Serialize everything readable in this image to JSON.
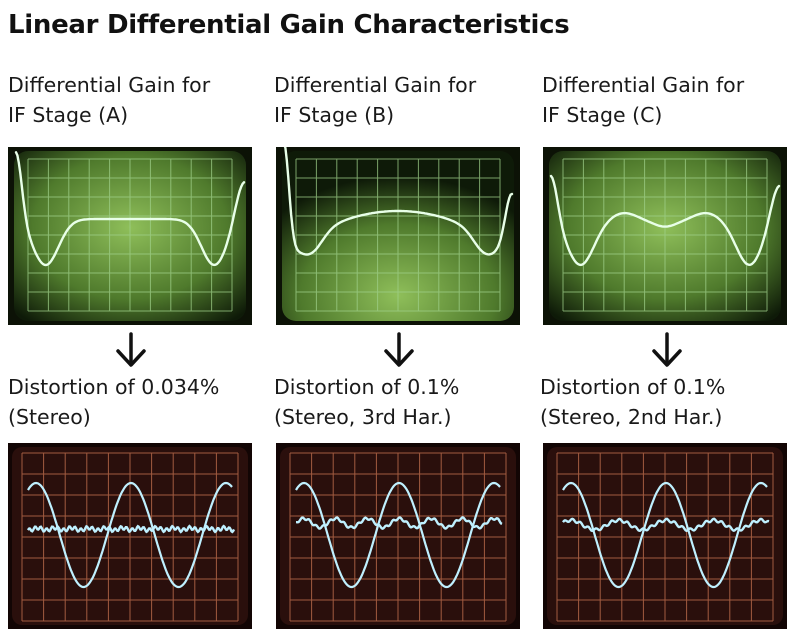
{
  "title": "Linear Differential Gain Characteristics",
  "columns": [
    {
      "gain_label_line1": "Differential Gain for",
      "gain_label_line2": "IF Stage (A)",
      "distortion_line1": "Distortion of 0.034%",
      "distortion_line2": "(Stereo)"
    },
    {
      "gain_label_line1": "Differential Gain for",
      "gain_label_line2": "IF Stage (B)",
      "distortion_line1": "Distortion of 0.1%",
      "distortion_line2": "(Stereo, 3rd Har.)"
    },
    {
      "gain_label_line1": "Differential Gain for",
      "gain_label_line2": "IF Stage (C)",
      "distortion_line1": "Distortion of 0.1%",
      "distortion_line2": "(Stereo, 2nd Har.)"
    }
  ],
  "colors": {
    "gain_screen": "#4f7a2c",
    "gain_grid": "#9fd08a",
    "gain_trace": "#e8ffe8",
    "distortion_screen": "#2a0f0c",
    "distortion_grid": "#b8694a",
    "distortion_trace": "#bff0ff"
  },
  "icons": {
    "down_arrow": "down-arrow-icon"
  }
}
